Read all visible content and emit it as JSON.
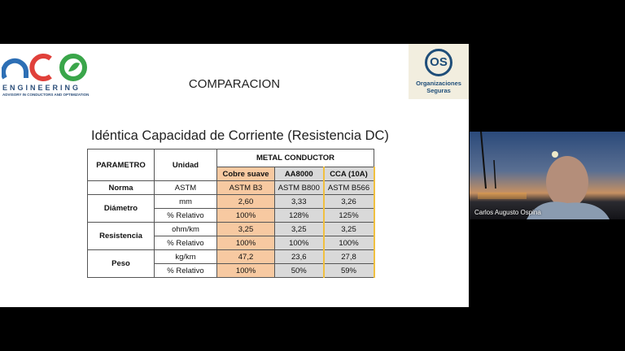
{
  "slide": {
    "logo_left": {
      "name": "ENGINEERING",
      "tagline": "ADVISORY IN CONDUCTORS AND OPTIMIZATION"
    },
    "logo_right": {
      "mark": "OS",
      "name": "Organizaciones Seguras"
    },
    "title": "COMPARACION",
    "subtitle": "Idéntica Capacidad de Corriente (Resistencia DC)",
    "table": {
      "header": [
        "PARAMETRO",
        "Unidad",
        "METAL CONDUCTOR"
      ],
      "columns": [
        "Cobre suave",
        "AA8000",
        "CCA (10A)"
      ],
      "groups": [
        {
          "parameter": "Norma",
          "rows": [
            [
              "ASTM",
              "ASTM B3",
              "ASTM B800",
              "ASTM B566"
            ]
          ]
        },
        {
          "parameter": "Diámetro",
          "rows": [
            [
              "mm",
              "2,60",
              "3,33",
              "3,26"
            ],
            [
              "% Relativo",
              "100%",
              "128%",
              "125%"
            ]
          ]
        },
        {
          "parameter": "Resistencia",
          "rows": [
            [
              "ohm/km",
              "3,25",
              "3,25",
              "3,25"
            ],
            [
              "% Relativo",
              "100%",
              "100%",
              "100%"
            ]
          ]
        },
        {
          "parameter": "Peso",
          "rows": [
            [
              "kg/km",
              "47,2",
              "23,6",
              "27,8"
            ],
            [
              "% Relativo",
              "100%",
              "50%",
              "59%"
            ]
          ]
        }
      ]
    }
  },
  "participant": {
    "name": "Carlos Augusto Ospina"
  }
}
